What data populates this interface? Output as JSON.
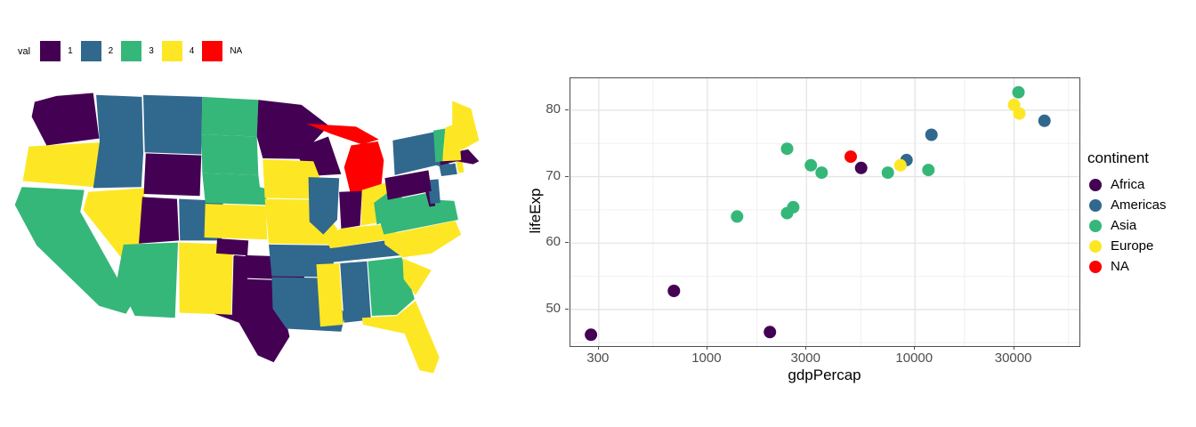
{
  "map_legend": {
    "title": "val",
    "items": [
      {
        "label": "1",
        "color": "#440154"
      },
      {
        "label": "2",
        "color": "#31688E"
      },
      {
        "label": "3",
        "color": "#35B779"
      },
      {
        "label": "4",
        "color": "#FDE725"
      },
      {
        "label": "NA",
        "color": "#FF0000"
      }
    ]
  },
  "chart_data": [
    {
      "type": "choropleth-map",
      "region": "US states",
      "legend_title": "val",
      "categories": [
        "1",
        "2",
        "3",
        "4",
        "NA"
      ],
      "palette": {
        "1": "#440154",
        "2": "#31688E",
        "3": "#35B779",
        "4": "#FDE725",
        "NA": "#FF0000"
      },
      "values": {
        "WA": "1",
        "OR": "4",
        "CA": "3",
        "NV": "4",
        "ID": "2",
        "MT": "2",
        "WY": "1",
        "UT": "1",
        "CO": "2",
        "AZ": "3",
        "NM": "4",
        "ND": "3",
        "SD": "3",
        "NE": "3",
        "KS": "4",
        "OK": "1",
        "TX": "1",
        "MN": "1",
        "IA": "4",
        "MO": "4",
        "AR": "2",
        "LA": "2",
        "WI": "1",
        "IL": "2",
        "MI": "NA",
        "IN": "1",
        "OH": "4",
        "KY": "4",
        "TN": "2",
        "MS": "4",
        "AL": "2",
        "GA": "3",
        "FL": "4",
        "SC": "4",
        "NC": "4",
        "VA": "3",
        "WV": "3",
        "MD": "3",
        "DE": "1",
        "NJ": "2",
        "PA": "1",
        "NY": "2",
        "CT": "2",
        "RI": "4",
        "MA": "1",
        "VT": "3",
        "NH": "4",
        "ME": "4"
      }
    },
    {
      "type": "scatter",
      "xlabel": "gdpPercap",
      "ylabel": "lifeExp",
      "x_scale": "log10",
      "x_ticks": [
        300,
        1000,
        3000,
        10000,
        30000
      ],
      "y_ticks": [
        50,
        60,
        70,
        80
      ],
      "xlim": [
        219,
        61900
      ],
      "ylim": [
        44.5,
        84.8
      ],
      "grid": "major+minor",
      "legend_position": "right",
      "legend_title": "continent",
      "series": [
        {
          "name": "Africa",
          "color": "#440154",
          "points": [
            [
              275,
              46.2
            ],
            [
              690,
              52.8
            ],
            [
              2000,
              46.6
            ],
            [
              5500,
              71.3
            ]
          ]
        },
        {
          "name": "Americas",
          "color": "#31688E",
          "points": [
            [
              9100,
              72.5
            ],
            [
              12000,
              76.3
            ],
            [
              42000,
              78.4
            ]
          ]
        },
        {
          "name": "Asia",
          "color": "#35B779",
          "points": [
            [
              1390,
              64.0
            ],
            [
              2420,
              64.5
            ],
            [
              2590,
              65.4
            ],
            [
              2420,
              74.2
            ],
            [
              3150,
              71.7
            ],
            [
              3550,
              70.6
            ],
            [
              7400,
              70.6
            ],
            [
              11600,
              71.0
            ],
            [
              31500,
              82.7
            ]
          ]
        },
        {
          "name": "Europe",
          "color": "#FDE725",
          "points": [
            [
              8500,
              71.7
            ],
            [
              30000,
              80.8
            ],
            [
              31800,
              79.5
            ]
          ]
        },
        {
          "name": "NA",
          "color": "#FF0000",
          "points": [
            [
              4900,
              73.0
            ]
          ]
        }
      ]
    }
  ]
}
